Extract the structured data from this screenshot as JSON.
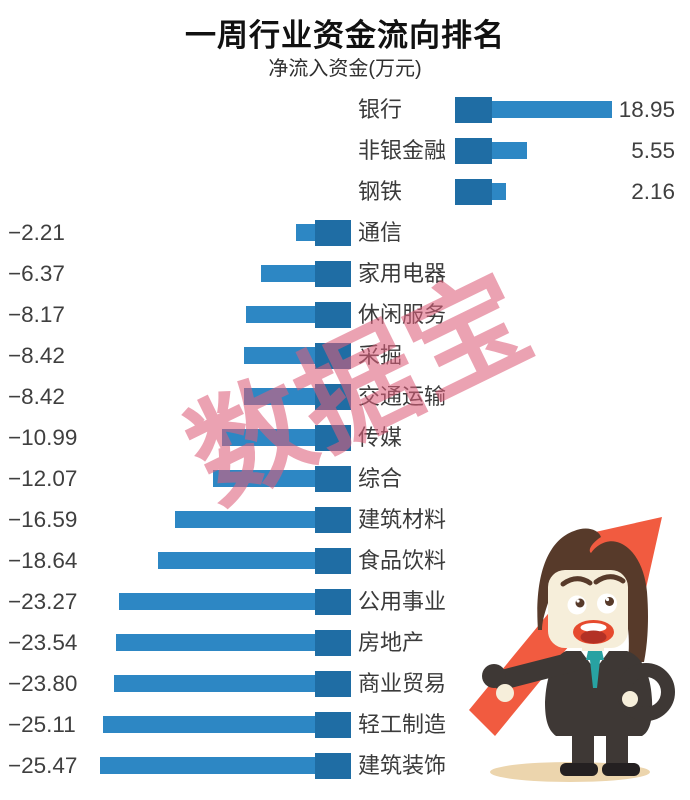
{
  "chart_data": {
    "type": "bar",
    "orientation": "horizontal",
    "diverging": true,
    "title": "一周行业资金流向排名",
    "unit_label": "净流入资金(万元)",
    "categories": [
      "银行",
      "非银金融",
      "钢铁",
      "通信",
      "家用电器",
      "休闲服务",
      "采掘",
      "交通运输",
      "传媒",
      "综合",
      "建筑材料",
      "食品饮料",
      "公用事业",
      "房地产",
      "商业贸易",
      "轻工制造",
      "建筑装饰"
    ],
    "values": [
      18.95,
      5.55,
      2.16,
      -2.21,
      -6.37,
      -8.17,
      -8.42,
      -8.42,
      -10.99,
      -12.07,
      -16.59,
      -18.64,
      -23.27,
      -23.54,
      -23.8,
      -25.11,
      -25.47
    ],
    "value_labels": [
      "18.95",
      "5.55",
      "2.16",
      "−2.21",
      "−6.37",
      "−8.17",
      "−8.42",
      "−8.42",
      "−10.99",
      "−12.07",
      "−16.59",
      "−18.64",
      "−23.27",
      "−23.54",
      "−23.80",
      "−25.11",
      "−25.47"
    ],
    "positive_side": "right",
    "negative_side": "left",
    "grid": false,
    "legend": false,
    "axis_line": false
  },
  "watermark": "数据宝",
  "mascot": {
    "name": "businessman-holding-up-arrow"
  },
  "colors": {
    "bar": "#2d87c4",
    "bar_stub": "#1f6da4",
    "watermark_pink": "rgba(221,95,122,0.58)",
    "arrow_red": "#f15b40",
    "hair_brown": "#573a2a",
    "face_cream": "#f6eeda",
    "suit_dark": "#3e3835",
    "tie_teal": "#28a2a2",
    "mouth_red": "#e64a2e",
    "mouth_inner": "#b33125",
    "shadow_tan": "#ecd5ad",
    "shoe_black": "#242021"
  }
}
